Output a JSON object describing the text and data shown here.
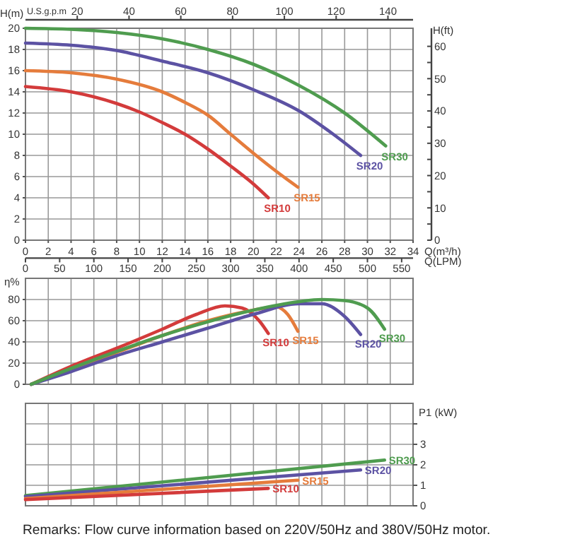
{
  "chart_data": [
    {
      "type": "line",
      "xlabel": "Q(m³/h)",
      "ylabel": "H(m)",
      "y2label": "H(ft)",
      "x2label": "U.S.g.p.m",
      "xlim": [
        0,
        34
      ],
      "xticks": [
        0,
        2,
        4,
        6,
        8,
        10,
        12,
        14,
        16,
        18,
        20,
        22,
        24,
        26,
        28,
        30,
        32,
        34
      ],
      "ylim": [
        0,
        20
      ],
      "yticks": [
        0,
        2,
        4,
        6,
        8,
        10,
        12,
        14,
        16,
        18,
        20
      ],
      "y2lim": [
        0,
        65.6
      ],
      "y2ticks": [
        0,
        {
          "value": 5,
          "label": null
        },
        10,
        {
          "value": 15,
          "label": null
        },
        20,
        {
          "value": 25,
          "label": null
        },
        30,
        {
          "value": 35,
          "label": null
        },
        40,
        {
          "value": 45,
          "label": null
        },
        50,
        {
          "value": 55,
          "label": null
        },
        60
      ],
      "x2lim": [
        0,
        149.7
      ],
      "x2ticks": [
        20,
        40,
        60,
        80,
        100,
        120,
        140
      ],
      "grid": true,
      "series": [
        {
          "name": "SR30",
          "color": "#4f9c4f",
          "x": [
            0,
            4,
            8,
            12,
            16,
            20,
            24,
            28,
            31.6
          ],
          "values": [
            20,
            19.9,
            19.6,
            19,
            18,
            16.6,
            14.6,
            12,
            8.9
          ]
        },
        {
          "name": "SR20",
          "color": "#5c52a3",
          "x": [
            0,
            4,
            8,
            12,
            16,
            20,
            24,
            27,
            29.4
          ],
          "values": [
            18.6,
            18.4,
            17.9,
            16.9,
            15.8,
            14.2,
            12.2,
            10,
            8
          ]
        },
        {
          "name": "SR15",
          "color": "#e57c3c",
          "x": [
            0,
            4,
            8,
            12,
            14,
            16,
            18,
            20,
            22,
            23.9
          ],
          "values": [
            16,
            15.8,
            15.2,
            14,
            13,
            11.8,
            10,
            8.2,
            6.5,
            5
          ]
        },
        {
          "name": "SR10",
          "color": "#d33b3b",
          "x": [
            0,
            4,
            8,
            10,
            12,
            14,
            16,
            18,
            20,
            21.3
          ],
          "values": [
            14.5,
            14,
            12.9,
            12.1,
            11.1,
            10,
            8.6,
            7,
            5.3,
            4
          ]
        }
      ]
    },
    {
      "type": "line",
      "ylabel": "η%",
      "x2label": "Q(LPM)",
      "xlim": [
        0,
        34
      ],
      "xticks": [
        0,
        2,
        4,
        6,
        8,
        10,
        12,
        14,
        16,
        18,
        20,
        22,
        24,
        26,
        28,
        30,
        32,
        34
      ],
      "tick_labels": "y",
      "x2lim": [
        0,
        566.7
      ],
      "x2ticks": [
        0,
        50,
        100,
        150,
        200,
        250,
        300,
        350,
        400,
        450,
        500,
        550
      ],
      "ylim": [
        0,
        100
      ],
      "yticks": [
        0,
        20,
        40,
        60,
        80
      ],
      "grid": true,
      "series": [
        {
          "name": "SR10",
          "color": "#d33b3b",
          "x": [
            0.5,
            4,
            8,
            12,
            15,
            17.5,
            19,
            20.5,
            21.3
          ],
          "values": [
            0,
            17,
            34,
            52,
            66,
            74,
            72,
            60,
            48
          ]
        },
        {
          "name": "SR15",
          "color": "#e57c3c",
          "x": [
            0.5,
            4,
            8,
            12,
            16,
            20,
            22,
            23,
            23.9
          ],
          "values": [
            0,
            14,
            30,
            46,
            60,
            70,
            73,
            66,
            50
          ]
        },
        {
          "name": "SR20",
          "color": "#5c52a3",
          "x": [
            0.5,
            4,
            8,
            12,
            16,
            20,
            24,
            26,
            28,
            29.4
          ],
          "values": [
            0,
            12,
            27,
            40,
            53,
            66,
            76,
            76,
            64,
            47
          ]
        },
        {
          "name": "SR30",
          "color": "#4f9c4f",
          "x": [
            0.5,
            4,
            8,
            12,
            16,
            20,
            24,
            26,
            28,
            30,
            31.5
          ],
          "values": [
            0,
            15,
            31,
            46,
            59,
            70,
            78,
            80,
            79,
            72,
            52
          ]
        }
      ]
    },
    {
      "type": "line",
      "ylabel": "P1 (kW)",
      "xlim": [
        0,
        34
      ],
      "xticks": [
        0,
        2,
        4,
        6,
        8,
        10,
        12,
        14,
        16,
        18,
        20,
        22,
        24,
        26,
        28,
        30,
        32,
        34
      ],
      "ylim": [
        0,
        5
      ],
      "yticks": [
        0,
        1,
        2,
        3,
        {
          "value": 4,
          "label": null
        }
      ],
      "grid": true,
      "tick_labels": "y",
      "annotations": [
        "Remarks: Flow curve information based on 220V/50Hz and 380V/50Hz motor."
      ],
      "series": [
        {
          "name": "SR30",
          "color": "#4f9c4f",
          "x": [
            0,
            31.5
          ],
          "values": [
            0.5,
            2.23
          ]
        },
        {
          "name": "SR20",
          "color": "#5c52a3",
          "x": [
            0,
            29.4
          ],
          "values": [
            0.45,
            1.75
          ]
        },
        {
          "name": "SR15",
          "color": "#e57c3c",
          "x": [
            0,
            23.9
          ],
          "values": [
            0.35,
            1.25
          ]
        },
        {
          "name": "SR10",
          "color": "#d33b3b",
          "x": [
            0,
            21.3
          ],
          "values": [
            0.3,
            0.85
          ]
        }
      ]
    }
  ]
}
